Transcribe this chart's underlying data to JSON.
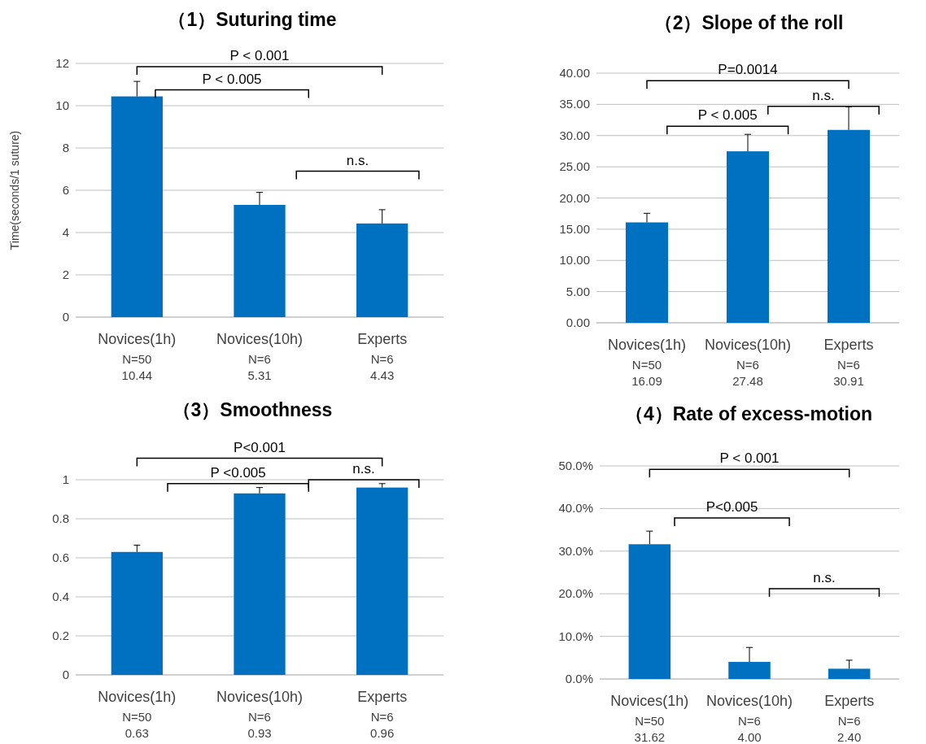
{
  "chart_data": [
    {
      "type": "bar",
      "title": "（1）Suturing time",
      "ylabel": "Time(seconds/1 suture)",
      "categories": [
        "Novices(1h)\nN=50",
        "Novices(10h)\nN=6",
        "Experts\nN=6"
      ],
      "color": "#0070c0",
      "values": [
        10.44,
        5.31,
        4.43
      ],
      "errors": [
        [
          10.44,
          11.15
        ],
        [
          5.31,
          5.9
        ],
        [
          4.43,
          5.08
        ]
      ],
      "value_labels": [
        "10.44",
        "5.31",
        "4.43"
      ],
      "ylim": [
        0,
        12
      ],
      "yticks": [
        0,
        2,
        4,
        6,
        8,
        10,
        12
      ],
      "grid": "y",
      "annotations": [
        "P < 0.001",
        "P < 0.005",
        "n.s."
      ]
    },
    {
      "type": "bar",
      "title": "（2）Slope of the roll",
      "categories": [
        "Novices(1h)\nN=50",
        "Novices(10h)\nN=6",
        "Experts\nN=6"
      ],
      "color": "#0070c0",
      "values": [
        16.09,
        27.48,
        30.91
      ],
      "errors": [
        [
          16.09,
          17.55
        ],
        [
          27.48,
          30.2
        ],
        [
          30.91,
          34.6
        ]
      ],
      "value_labels": [
        "16.09",
        "27.48",
        "30.91"
      ],
      "ylim": [
        0,
        40
      ],
      "yticks": [
        {
          "value": 0,
          "label": "0.00"
        },
        {
          "value": 5,
          "label": "5.00"
        },
        {
          "value": 10,
          "label": "10.00"
        },
        {
          "value": 15,
          "label": "15.00"
        },
        {
          "value": 20,
          "label": "20.00"
        },
        {
          "value": 25,
          "label": "25.00"
        },
        {
          "value": 30,
          "label": "30.00"
        },
        {
          "value": 35,
          "label": "35.00"
        },
        {
          "value": 40,
          "label": "40.00"
        }
      ],
      "grid": "y",
      "annotations": [
        "P=0.0014",
        "P < 0.005",
        "n.s."
      ]
    },
    {
      "type": "bar",
      "title": "（3）Smoothness",
      "categories": [
        "Novices(1h)\nN=50",
        "Novices(10h)\nN=6",
        "Experts\nN=6"
      ],
      "color": "#0070c0",
      "values": [
        0.63,
        0.93,
        0.96
      ],
      "errors": [
        [
          0.63,
          0.665
        ],
        [
          0.93,
          0.96
        ],
        [
          0.96,
          0.98
        ]
      ],
      "value_labels": [
        "0.63",
        "0.93",
        "0.96"
      ],
      "ylim": [
        0,
        1
      ],
      "yticks": [
        0,
        0.2,
        0.4,
        0.6,
        0.8,
        1
      ],
      "grid": "y",
      "annotations": [
        "P<0.001",
        "P <0.005",
        "n.s."
      ]
    },
    {
      "type": "bar",
      "title": "（4）Rate of excess-motion",
      "categories": [
        "Novices(1h)\nN=50",
        "Novices(10h)\nN=6",
        "Experts\nN=6"
      ],
      "color": "#0070c0",
      "values": [
        31.62,
        4.0,
        2.4
      ],
      "errors": [
        [
          31.62,
          34.7
        ],
        [
          4.0,
          7.4
        ],
        [
          2.4,
          4.4
        ]
      ],
      "value_labels": [
        "31.62",
        "4.00",
        "2.40"
      ],
      "ylim": [
        0,
        50
      ],
      "yticks": [
        {
          "value": 0,
          "label": "0.0%"
        },
        {
          "value": 10,
          "label": "10.0%"
        },
        {
          "value": 20,
          "label": "20.0%"
        },
        {
          "value": 30,
          "label": "30.0%"
        },
        {
          "value": 40,
          "label": "40.0%"
        },
        {
          "value": 50,
          "label": "50.0%"
        }
      ],
      "grid": "y",
      "annotations": [
        "P < 0.001",
        "P<0.005",
        "n.s."
      ]
    }
  ]
}
